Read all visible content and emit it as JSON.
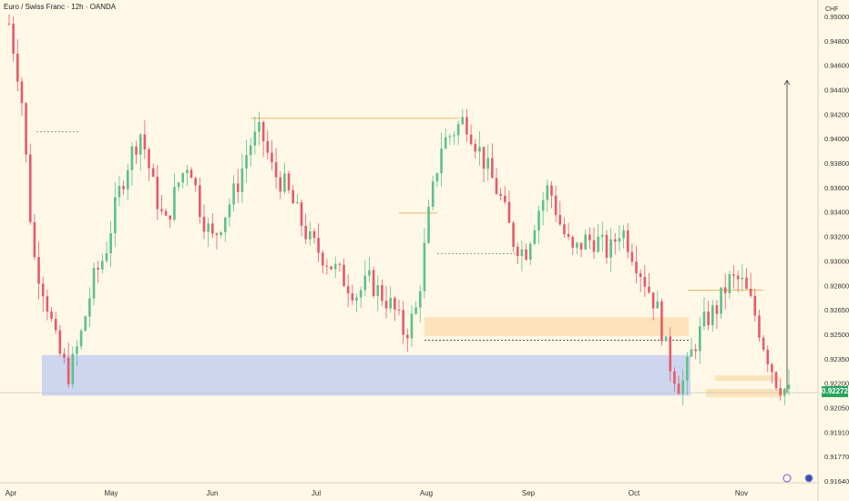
{
  "header": {
    "title": "Euro / Swiss Franc · 12h · OANDA",
    "currency": "CHF",
    "current_price": "0.92272"
  },
  "colors": {
    "background": "#fff8e7",
    "up": "#5cc18a",
    "down": "#e65a6b",
    "zone_blue": "#c5cff0",
    "zone_orange": "#fde0b5",
    "level_line": "#e8b866",
    "price_badge": "#26a65b"
  },
  "chart_data": {
    "type": "line",
    "title": "Euro / Swiss Franc · 12h · OANDA",
    "xlabel": "",
    "ylabel": "CHF",
    "ylim": [
      0.9164,
      0.9512
    ],
    "x_ticks": [
      "Apr",
      "May",
      "Jun",
      "Jul",
      "Aug",
      "Sep",
      "Oct",
      "Nov"
    ],
    "y_ticks": [
      "0.95000",
      "0.94800",
      "0.94600",
      "0.94400",
      "0.94200",
      "0.94000",
      "0.93800",
      "0.93600",
      "0.93400",
      "0.93200",
      "0.93000",
      "0.92800",
      "0.92650",
      "0.92500",
      "0.92350",
      "0.92200",
      "0.92050",
      "0.91910",
      "0.91770",
      "0.91640"
    ],
    "grid": false,
    "series": [
      {
        "x": [
          "Apr 1",
          "Apr 3",
          "Apr 5",
          "Apr 7",
          "Apr 9",
          "Apr 11",
          "Apr 14",
          "Apr 17",
          "Apr 21",
          "Apr 25",
          "Apr 29",
          "May 2",
          "May 6",
          "May 10",
          "May 14",
          "May 18",
          "May 22",
          "May 26",
          "May 30",
          "Jun 3",
          "Jun 7",
          "Jun 11",
          "Jun 15",
          "Jun 19",
          "Jun 23",
          "Jun 27",
          "Jul 1",
          "Jul 5",
          "Jul 9",
          "Jul 13",
          "Jul 17",
          "Jul 21",
          "Jul 25",
          "Jul 29",
          "Aug 1",
          "Aug 4",
          "Aug 7",
          "Aug 10",
          "Aug 13",
          "Aug 16",
          "Aug 20",
          "Aug 24",
          "Aug 28",
          "Sep 1",
          "Sep 5",
          "Sep 9",
          "Sep 13",
          "Sep 17",
          "Sep 21",
          "Sep 25",
          "Sep 29",
          "Oct 3",
          "Oct 7",
          "Oct 11",
          "Oct 14",
          "Oct 17",
          "Oct 20",
          "Oct 23",
          "Oct 26",
          "Oct 29",
          "Nov 1",
          "Nov 3",
          "Nov 6",
          "Nov 9",
          "Nov 12",
          "Nov 14"
        ],
        "values": [
          0.95,
          0.945,
          0.933,
          0.93,
          0.926,
          0.924,
          0.927,
          0.931,
          0.933,
          0.937,
          0.94,
          0.942,
          0.938,
          0.935,
          0.938,
          0.94,
          0.936,
          0.934,
          0.936,
          0.938,
          0.941,
          0.942,
          0.939,
          0.938,
          0.936,
          0.934,
          0.933,
          0.932,
          0.931,
          0.93,
          0.931,
          0.93,
          0.929,
          0.927,
          0.929,
          0.936,
          0.941,
          0.942,
          0.943,
          0.941,
          0.939,
          0.937,
          0.934,
          0.933,
          0.936,
          0.938,
          0.935,
          0.933,
          0.934,
          0.934,
          0.933,
          0.935,
          0.933,
          0.931,
          0.929,
          0.925,
          0.923,
          0.926,
          0.928,
          0.929,
          0.931,
          0.931,
          0.929,
          0.926,
          0.9235,
          0.9227
        ]
      }
    ],
    "annotations": {
      "resistance_lines": [
        0.942,
        0.943,
        0.936,
        0.933,
        0.9303
      ],
      "blue_zone": [
        0.9225,
        0.9255
      ],
      "orange_zones": [
        [
          0.9269,
          0.9283
        ],
        [
          0.9224,
          0.923
        ],
        [
          0.9236,
          0.924
        ]
      ]
    }
  }
}
